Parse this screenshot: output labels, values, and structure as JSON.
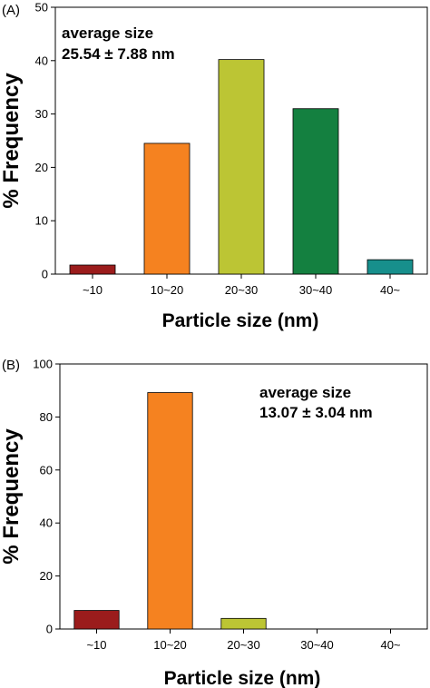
{
  "chart_data": [
    {
      "type": "bar",
      "panel_label": "(A)",
      "categories": [
        "~10",
        "10~20",
        "20~30",
        "30~40",
        "40~"
      ],
      "values": [
        1.7,
        24.5,
        40.2,
        31.0,
        2.7
      ],
      "colors": [
        "#9b1c1c",
        "#f58220",
        "#bcc534",
        "#148040",
        "#178f8c"
      ],
      "xlabel": "Particle size (nm)",
      "ylabel": "% Frequency",
      "ylim": [
        0,
        50
      ],
      "yticks": [
        0,
        10,
        20,
        30,
        40,
        50
      ],
      "annotation": {
        "line1": "average size",
        "line2": "25.54 ±  7.88 nm",
        "position": "top-left"
      },
      "grid": false
    },
    {
      "type": "bar",
      "panel_label": "(B)",
      "categories": [
        "~10",
        "10~20",
        "20~30",
        "30~40",
        "40~"
      ],
      "values": [
        7.0,
        89.2,
        4.0,
        0,
        0
      ],
      "colors": [
        "#9b1c1c",
        "#f58220",
        "#bcc534",
        "#148040",
        "#178f8c"
      ],
      "xlabel": "Particle size (nm)",
      "ylabel": "% Frequency",
      "ylim": [
        0,
        100
      ],
      "yticks": [
        0,
        20,
        40,
        60,
        80,
        100
      ],
      "annotation": {
        "line1": "average size",
        "line2": "13.07 ±  3.04 nm",
        "position": "top-right"
      },
      "grid": false
    }
  ]
}
